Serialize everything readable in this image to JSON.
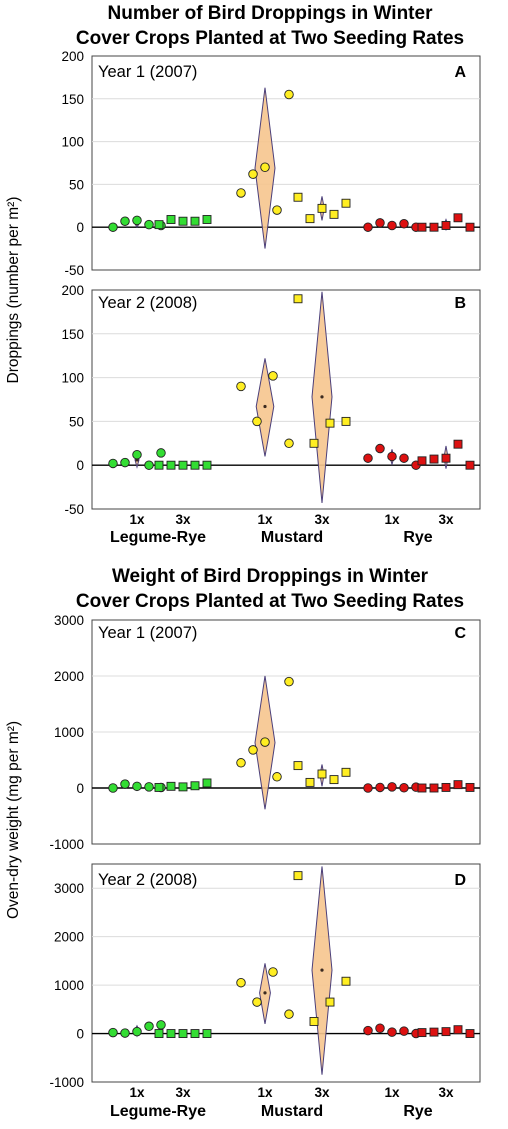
{
  "top_title": [
    "Number of Bird Droppings in Winter",
    "Cover Crops Planted at Two Seeding Rates"
  ],
  "bottom_title": [
    "Weight of Bird Droppings in Winter",
    "Cover Crops Planted at Two Seeding Rates"
  ],
  "top_ylabel": "Droppings (number per m²)",
  "bottom_ylabel": "Oven-dry weight (mg per m²)",
  "rate_labels": [
    "1x",
    "3x",
    "1x",
    "3x",
    "1x",
    "3x"
  ],
  "crop_labels": [
    "Legume-Rye",
    "Mustard",
    "Rye"
  ],
  "colors": {
    "legume": "#33dd33",
    "mustard": "#ffee22",
    "rye": "#dd1111",
    "violin_fill": "#f6c58e",
    "violin_edge": "#4b3f7a"
  },
  "chart_data": [
    {
      "type": "scatter",
      "panel": "A",
      "subtitle": "Year 1 (2007)",
      "ylim": [
        -50,
        200
      ],
      "yticks": [
        -50,
        0,
        50,
        100,
        150,
        200
      ],
      "grid": true,
      "groups": [
        {
          "crop": "Legume-Rye",
          "rate": "1x",
          "marker": "circle",
          "values": [
            0,
            7,
            8,
            3,
            2
          ],
          "mean": 4,
          "violin": [
            0,
            8
          ]
        },
        {
          "crop": "Legume-Rye",
          "rate": "3x",
          "marker": "square",
          "values": [
            3,
            9,
            7,
            7,
            9
          ],
          "mean": 7,
          "violin": [
            4,
            10
          ]
        },
        {
          "crop": "Mustard",
          "rate": "1x",
          "marker": "circle",
          "values": [
            40,
            62,
            70,
            20,
            155
          ],
          "mean": 69,
          "violin": [
            -25,
            163
          ]
        },
        {
          "crop": "Mustard",
          "rate": "3x",
          "marker": "square",
          "values": [
            35,
            10,
            22,
            15,
            28
          ],
          "mean": 22,
          "violin": [
            8,
            36
          ]
        },
        {
          "crop": "Rye",
          "rate": "1x",
          "marker": "circle",
          "values": [
            0,
            5,
            2,
            4,
            0
          ],
          "mean": 2,
          "violin": [
            -1,
            5
          ]
        },
        {
          "crop": "Rye",
          "rate": "3x",
          "marker": "square",
          "values": [
            0,
            0,
            2,
            11,
            0
          ],
          "mean": 3,
          "violin": [
            -3,
            9
          ]
        }
      ]
    },
    {
      "type": "scatter",
      "panel": "B",
      "subtitle": "Year 2 (2008)",
      "ylim": [
        -50,
        200
      ],
      "yticks": [
        -50,
        0,
        50,
        100,
        150,
        200
      ],
      "grid": true,
      "groups": [
        {
          "crop": "Legume-Rye",
          "rate": "1x",
          "marker": "circle",
          "values": [
            2,
            3,
            12,
            0,
            14
          ],
          "mean": 6,
          "violin": [
            -2,
            16
          ]
        },
        {
          "crop": "Legume-Rye",
          "rate": "3x",
          "marker": "square",
          "values": [
            0,
            0,
            0,
            0,
            0
          ],
          "mean": 0,
          "violin": [
            0,
            0
          ]
        },
        {
          "crop": "Mustard",
          "rate": "1x",
          "marker": "circle",
          "values": [
            90,
            50,
            102,
            25
          ],
          "mean": 67,
          "violin": [
            10,
            122
          ]
        },
        {
          "crop": "Mustard",
          "rate": "3x",
          "marker": "square",
          "values": [
            190,
            25,
            48,
            50
          ],
          "mean": 78,
          "violin": [
            -43,
            198
          ]
        },
        {
          "crop": "Rye",
          "rate": "1x",
          "marker": "circle",
          "values": [
            8,
            19,
            10,
            8,
            0
          ],
          "mean": 9,
          "violin": [
            1,
            18
          ]
        },
        {
          "crop": "Rye",
          "rate": "3x",
          "marker": "square",
          "values": [
            5,
            7,
            8,
            24,
            0
          ],
          "mean": 9,
          "violin": [
            -4,
            22
          ]
        }
      ]
    },
    {
      "type": "scatter",
      "panel": "C",
      "subtitle": "Year 1 (2007)",
      "ylim": [
        -1000,
        3000
      ],
      "yticks": [
        -1000,
        0,
        1000,
        2000,
        3000
      ],
      "grid": true,
      "groups": [
        {
          "crop": "Legume-Rye",
          "rate": "1x",
          "marker": "circle",
          "values": [
            0,
            70,
            30,
            20,
            10
          ],
          "mean": 26,
          "violin": [
            -10,
            60
          ]
        },
        {
          "crop": "Legume-Rye",
          "rate": "3x",
          "marker": "square",
          "values": [
            10,
            30,
            20,
            40,
            90
          ],
          "mean": 38,
          "violin": [
            0,
            80
          ]
        },
        {
          "crop": "Mustard",
          "rate": "1x",
          "marker": "circle",
          "values": [
            450,
            680,
            820,
            200,
            1900
          ],
          "mean": 810,
          "violin": [
            -380,
            2000
          ]
        },
        {
          "crop": "Mustard",
          "rate": "3x",
          "marker": "square",
          "values": [
            400,
            100,
            250,
            150,
            280
          ],
          "mean": 236,
          "violin": [
            30,
            420
          ]
        },
        {
          "crop": "Rye",
          "rate": "1x",
          "marker": "circle",
          "values": [
            0,
            10,
            20,
            5,
            15
          ],
          "mean": 10,
          "violin": [
            0,
            20
          ]
        },
        {
          "crop": "Rye",
          "rate": "3x",
          "marker": "square",
          "values": [
            0,
            0,
            10,
            60,
            10
          ],
          "mean": 16,
          "violin": [
            -20,
            60
          ]
        }
      ]
    },
    {
      "type": "scatter",
      "panel": "D",
      "subtitle": "Year 2 (2008)",
      "ylim": [
        -1000,
        3500
      ],
      "yticks": [
        -1000,
        0,
        1000,
        2000,
        3000
      ],
      "grid": true,
      "groups": [
        {
          "crop": "Legume-Rye",
          "rate": "1x",
          "marker": "circle",
          "values": [
            20,
            10,
            40,
            150,
            180
          ],
          "mean": 80,
          "violin": [
            -50,
            160
          ]
        },
        {
          "crop": "Legume-Rye",
          "rate": "3x",
          "marker": "square",
          "values": [
            0,
            0,
            0,
            0,
            0
          ],
          "mean": 0,
          "violin": [
            0,
            0
          ]
        },
        {
          "crop": "Mustard",
          "rate": "1x",
          "marker": "circle",
          "values": [
            1050,
            650,
            1270,
            400
          ],
          "mean": 840,
          "violin": [
            200,
            1450
          ]
        },
        {
          "crop": "Mustard",
          "rate": "3x",
          "marker": "square",
          "values": [
            3260,
            250,
            650,
            1080
          ],
          "mean": 1310,
          "violin": [
            -850,
            3450
          ]
        },
        {
          "crop": "Rye",
          "rate": "1x",
          "marker": "circle",
          "values": [
            60,
            110,
            30,
            50,
            0
          ],
          "mean": 50,
          "violin": [
            0,
            110
          ]
        },
        {
          "crop": "Rye",
          "rate": "3x",
          "marker": "square",
          "values": [
            20,
            30,
            40,
            80,
            0
          ],
          "mean": 34,
          "violin": [
            -10,
            80
          ]
        }
      ]
    }
  ]
}
